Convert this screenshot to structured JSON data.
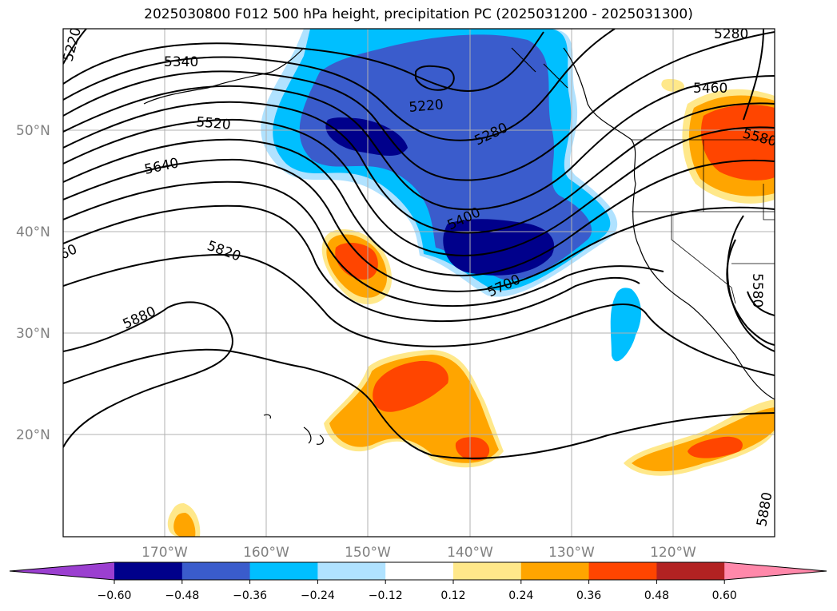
{
  "title": "2025030800 F012 500 hPa height, precipitation PC (2025031200 - 2025031300)",
  "lon_labels": [
    "170°W",
    "160°W",
    "150°W",
    "140°W",
    "130°W",
    "120°W"
  ],
  "lat_labels": [
    "50°N",
    "40°N",
    "30°N",
    "20°N"
  ],
  "contour_labels": [
    "5220",
    "5340",
    "5220",
    "5280",
    "5520",
    "5640",
    "5400",
    "5820",
    "5700",
    "5880",
    "5460",
    "5580",
    "5580",
    "5880",
    "60",
    "5280"
  ],
  "colorbar": {
    "ticks": [
      "−0.60",
      "−0.48",
      "−0.36",
      "−0.24",
      "−0.12",
      "0.12",
      "0.24",
      "0.36",
      "0.48",
      "0.60"
    ],
    "colors": [
      "#9b3fd0",
      "#00008b",
      "#3a5ccc",
      "#00bfff",
      "#b0e2ff",
      "#ffffff",
      "#ffe88a",
      "#ffa500",
      "#ff4500",
      "#b22222",
      "#ff88aa"
    ]
  },
  "colors": {
    "neg_dark": "#00008b",
    "neg_mid": "#3a5ccc",
    "neg_light": "#00bfff",
    "neg_pale": "#b0e2ff",
    "pos_pale": "#ffe88a",
    "pos_mid": "#ffa500",
    "pos_strong": "#ff4500"
  }
}
